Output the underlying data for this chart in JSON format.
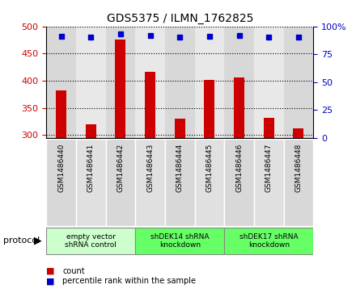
{
  "title": "GDS5375 / ILMN_1762825",
  "samples": [
    "GSM1486440",
    "GSM1486441",
    "GSM1486442",
    "GSM1486443",
    "GSM1486444",
    "GSM1486445",
    "GSM1486446",
    "GSM1486447",
    "GSM1486448"
  ],
  "counts": [
    382,
    320,
    475,
    416,
    330,
    402,
    406,
    331,
    312
  ],
  "percentile_ranks": [
    91,
    90,
    93,
    92,
    90,
    91,
    92,
    90,
    90
  ],
  "ylim_left": [
    295,
    500
  ],
  "ylim_right": [
    0,
    100
  ],
  "yticks_left": [
    300,
    350,
    400,
    450,
    500
  ],
  "yticks_right": [
    0,
    25,
    50,
    75,
    100
  ],
  "bar_color": "#cc0000",
  "dot_color": "#0000cc",
  "col_bg_even": "#d0d0d0",
  "col_bg_odd": "#e0e0e0",
  "groups": [
    {
      "label": "empty vector\nshRNA control",
      "start": 0,
      "end": 3,
      "color": "#ccffcc"
    },
    {
      "label": "shDEK14 shRNA\nknockdown",
      "start": 3,
      "end": 6,
      "color": "#66ff66"
    },
    {
      "label": "shDEK17 shRNA\nknockdown",
      "start": 6,
      "end": 9,
      "color": "#66ff66"
    }
  ],
  "legend_items": [
    {
      "label": "count",
      "color": "#cc0000"
    },
    {
      "label": "percentile rank within the sample",
      "color": "#0000cc"
    }
  ],
  "grid_color": "#000000",
  "tick_label_color_left": "#cc0000",
  "tick_label_color_right": "#0000cc",
  "background_color": "#ffffff"
}
